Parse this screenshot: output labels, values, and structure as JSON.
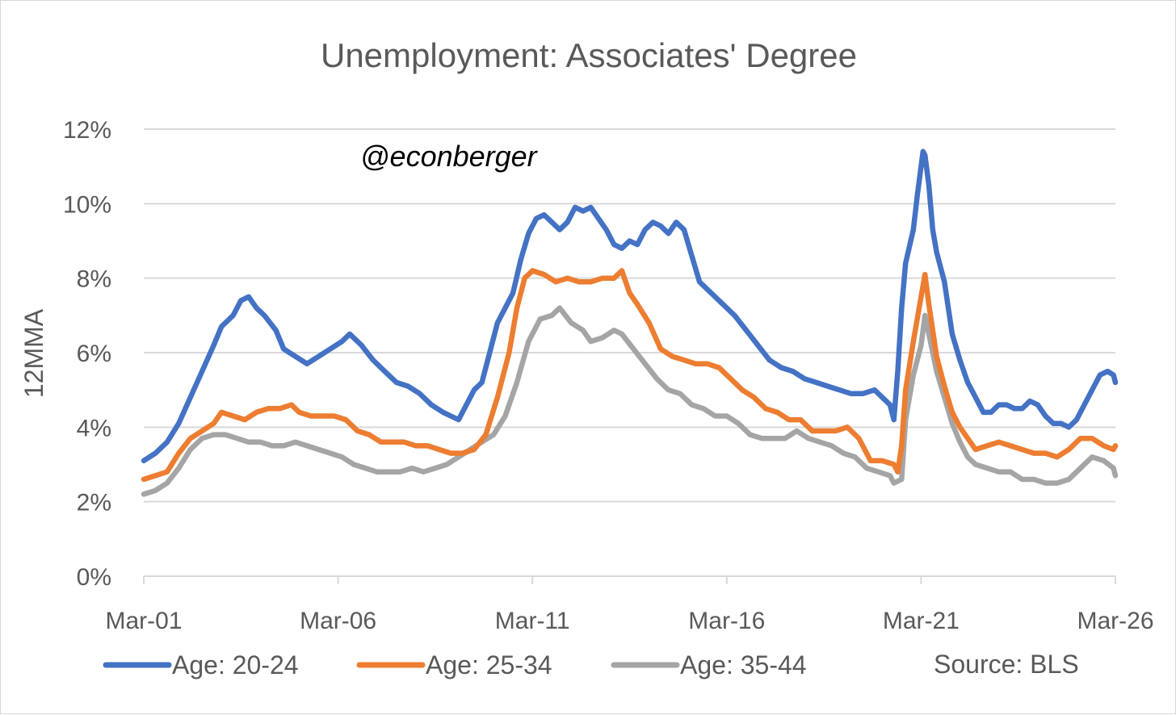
{
  "chart_data": {
    "type": "line",
    "title": "Unemployment: Associates' Degree",
    "ylabel": "12MMA",
    "xlabel": "",
    "watermark": "@econberger",
    "source": "Source: BLS",
    "ylim": [
      0,
      12
    ],
    "yticks": [
      "0%",
      "2%",
      "4%",
      "6%",
      "8%",
      "10%",
      "12%"
    ],
    "xlim": [
      2001.0,
      2026.0
    ],
    "xticks": [
      "Mar-01",
      "Mar-06",
      "Mar-11",
      "Mar-16",
      "Mar-21",
      "Mar-26"
    ],
    "grid": true,
    "legend_position": "bottom",
    "series": [
      {
        "name": "Age: 20-24",
        "color": "#4472C4",
        "points": [
          [
            2001.0,
            3.1
          ],
          [
            2001.3,
            3.3
          ],
          [
            2001.6,
            3.6
          ],
          [
            2001.9,
            4.1
          ],
          [
            2002.2,
            4.8
          ],
          [
            2002.5,
            5.5
          ],
          [
            2002.8,
            6.2
          ],
          [
            2003.0,
            6.7
          ],
          [
            2003.3,
            7.0
          ],
          [
            2003.5,
            7.4
          ],
          [
            2003.7,
            7.5
          ],
          [
            2003.9,
            7.2
          ],
          [
            2004.1,
            7.0
          ],
          [
            2004.4,
            6.6
          ],
          [
            2004.6,
            6.1
          ],
          [
            2004.9,
            5.9
          ],
          [
            2005.2,
            5.7
          ],
          [
            2005.5,
            5.9
          ],
          [
            2005.8,
            6.1
          ],
          [
            2006.1,
            6.3
          ],
          [
            2006.3,
            6.5
          ],
          [
            2006.6,
            6.2
          ],
          [
            2006.9,
            5.8
          ],
          [
            2007.2,
            5.5
          ],
          [
            2007.5,
            5.2
          ],
          [
            2007.8,
            5.1
          ],
          [
            2008.1,
            4.9
          ],
          [
            2008.4,
            4.6
          ],
          [
            2008.7,
            4.4
          ],
          [
            2008.9,
            4.3
          ],
          [
            2009.1,
            4.2
          ],
          [
            2009.3,
            4.6
          ],
          [
            2009.5,
            5.0
          ],
          [
            2009.7,
            5.2
          ],
          [
            2009.9,
            6.0
          ],
          [
            2010.1,
            6.8
          ],
          [
            2010.3,
            7.2
          ],
          [
            2010.5,
            7.6
          ],
          [
            2010.7,
            8.5
          ],
          [
            2010.9,
            9.2
          ],
          [
            2011.1,
            9.6
          ],
          [
            2011.3,
            9.7
          ],
          [
            2011.5,
            9.5
          ],
          [
            2011.7,
            9.3
          ],
          [
            2011.9,
            9.5
          ],
          [
            2012.1,
            9.9
          ],
          [
            2012.3,
            9.8
          ],
          [
            2012.5,
            9.9
          ],
          [
            2012.7,
            9.6
          ],
          [
            2012.9,
            9.3
          ],
          [
            2013.1,
            8.9
          ],
          [
            2013.3,
            8.8
          ],
          [
            2013.5,
            9.0
          ],
          [
            2013.7,
            8.9
          ],
          [
            2013.9,
            9.3
          ],
          [
            2014.1,
            9.5
          ],
          [
            2014.3,
            9.4
          ],
          [
            2014.5,
            9.2
          ],
          [
            2014.7,
            9.5
          ],
          [
            2014.9,
            9.3
          ],
          [
            2015.1,
            8.6
          ],
          [
            2015.3,
            7.9
          ],
          [
            2015.5,
            7.7
          ],
          [
            2015.7,
            7.5
          ],
          [
            2015.9,
            7.3
          ],
          [
            2016.2,
            7.0
          ],
          [
            2016.5,
            6.6
          ],
          [
            2016.8,
            6.2
          ],
          [
            2017.1,
            5.8
          ],
          [
            2017.4,
            5.6
          ],
          [
            2017.7,
            5.5
          ],
          [
            2018.0,
            5.3
          ],
          [
            2018.3,
            5.2
          ],
          [
            2018.6,
            5.1
          ],
          [
            2018.9,
            5.0
          ],
          [
            2019.2,
            4.9
          ],
          [
            2019.5,
            4.9
          ],
          [
            2019.8,
            5.0
          ],
          [
            2020.0,
            4.8
          ],
          [
            2020.2,
            4.6
          ],
          [
            2020.3,
            4.2
          ],
          [
            2020.4,
            5.5
          ],
          [
            2020.5,
            7.2
          ],
          [
            2020.6,
            8.4
          ],
          [
            2020.8,
            9.3
          ],
          [
            2020.9,
            10.2
          ],
          [
            2021.0,
            11.0
          ],
          [
            2021.05,
            11.4
          ],
          [
            2021.1,
            11.3
          ],
          [
            2021.2,
            10.5
          ],
          [
            2021.3,
            9.3
          ],
          [
            2021.4,
            8.7
          ],
          [
            2021.6,
            7.9
          ],
          [
            2021.8,
            6.5
          ],
          [
            2022.0,
            5.8
          ],
          [
            2022.2,
            5.2
          ],
          [
            2022.4,
            4.8
          ],
          [
            2022.6,
            4.4
          ],
          [
            2022.8,
            4.4
          ],
          [
            2023.0,
            4.6
          ],
          [
            2023.2,
            4.6
          ],
          [
            2023.4,
            4.5
          ],
          [
            2023.6,
            4.5
          ],
          [
            2023.8,
            4.7
          ],
          [
            2024.0,
            4.6
          ],
          [
            2024.2,
            4.3
          ],
          [
            2024.4,
            4.1
          ],
          [
            2024.6,
            4.1
          ],
          [
            2024.8,
            4.0
          ],
          [
            2025.0,
            4.2
          ],
          [
            2025.2,
            4.6
          ],
          [
            2025.4,
            5.0
          ],
          [
            2025.6,
            5.4
          ],
          [
            2025.8,
            5.5
          ],
          [
            2025.95,
            5.4
          ],
          [
            2026.0,
            5.2
          ]
        ]
      },
      {
        "name": "Age: 25-34",
        "color": "#ED7D31",
        "points": [
          [
            2001.0,
            2.6
          ],
          [
            2001.3,
            2.7
          ],
          [
            2001.6,
            2.8
          ],
          [
            2001.9,
            3.3
          ],
          [
            2002.2,
            3.7
          ],
          [
            2002.5,
            3.9
          ],
          [
            2002.8,
            4.1
          ],
          [
            2003.0,
            4.4
          ],
          [
            2003.3,
            4.3
          ],
          [
            2003.6,
            4.2
          ],
          [
            2003.9,
            4.4
          ],
          [
            2004.2,
            4.5
          ],
          [
            2004.5,
            4.5
          ],
          [
            2004.8,
            4.6
          ],
          [
            2005.0,
            4.4
          ],
          [
            2005.3,
            4.3
          ],
          [
            2005.6,
            4.3
          ],
          [
            2005.9,
            4.3
          ],
          [
            2006.2,
            4.2
          ],
          [
            2006.5,
            3.9
          ],
          [
            2006.8,
            3.8
          ],
          [
            2007.1,
            3.6
          ],
          [
            2007.4,
            3.6
          ],
          [
            2007.7,
            3.6
          ],
          [
            2008.0,
            3.5
          ],
          [
            2008.3,
            3.5
          ],
          [
            2008.6,
            3.4
          ],
          [
            2008.9,
            3.3
          ],
          [
            2009.2,
            3.3
          ],
          [
            2009.5,
            3.4
          ],
          [
            2009.8,
            3.8
          ],
          [
            2010.1,
            4.8
          ],
          [
            2010.4,
            6.0
          ],
          [
            2010.6,
            7.2
          ],
          [
            2010.8,
            8.0
          ],
          [
            2011.0,
            8.2
          ],
          [
            2011.3,
            8.1
          ],
          [
            2011.6,
            7.9
          ],
          [
            2011.9,
            8.0
          ],
          [
            2012.2,
            7.9
          ],
          [
            2012.5,
            7.9
          ],
          [
            2012.8,
            8.0
          ],
          [
            2013.1,
            8.0
          ],
          [
            2013.3,
            8.2
          ],
          [
            2013.5,
            7.6
          ],
          [
            2013.7,
            7.3
          ],
          [
            2014.0,
            6.8
          ],
          [
            2014.3,
            6.1
          ],
          [
            2014.6,
            5.9
          ],
          [
            2014.9,
            5.8
          ],
          [
            2015.2,
            5.7
          ],
          [
            2015.5,
            5.7
          ],
          [
            2015.8,
            5.6
          ],
          [
            2016.1,
            5.3
          ],
          [
            2016.4,
            5.0
          ],
          [
            2016.7,
            4.8
          ],
          [
            2017.0,
            4.5
          ],
          [
            2017.3,
            4.4
          ],
          [
            2017.6,
            4.2
          ],
          [
            2017.9,
            4.2
          ],
          [
            2018.2,
            3.9
          ],
          [
            2018.5,
            3.9
          ],
          [
            2018.8,
            3.9
          ],
          [
            2019.1,
            4.0
          ],
          [
            2019.4,
            3.7
          ],
          [
            2019.7,
            3.1
          ],
          [
            2020.0,
            3.1
          ],
          [
            2020.3,
            3.0
          ],
          [
            2020.4,
            2.8
          ],
          [
            2020.5,
            3.5
          ],
          [
            2020.6,
            5.0
          ],
          [
            2020.8,
            6.3
          ],
          [
            2021.0,
            7.5
          ],
          [
            2021.1,
            8.1
          ],
          [
            2021.2,
            7.3
          ],
          [
            2021.4,
            5.9
          ],
          [
            2021.6,
            5.1
          ],
          [
            2021.8,
            4.4
          ],
          [
            2022.0,
            4.0
          ],
          [
            2022.2,
            3.7
          ],
          [
            2022.4,
            3.4
          ],
          [
            2022.7,
            3.5
          ],
          [
            2023.0,
            3.6
          ],
          [
            2023.3,
            3.5
          ],
          [
            2023.6,
            3.4
          ],
          [
            2023.9,
            3.3
          ],
          [
            2024.2,
            3.3
          ],
          [
            2024.5,
            3.2
          ],
          [
            2024.8,
            3.4
          ],
          [
            2025.1,
            3.7
          ],
          [
            2025.4,
            3.7
          ],
          [
            2025.7,
            3.5
          ],
          [
            2025.95,
            3.4
          ],
          [
            2026.0,
            3.5
          ]
        ]
      },
      {
        "name": "Age: 35-44",
        "color": "#A5A5A5",
        "points": [
          [
            2001.0,
            2.2
          ],
          [
            2001.3,
            2.3
          ],
          [
            2001.6,
            2.5
          ],
          [
            2001.9,
            2.9
          ],
          [
            2002.2,
            3.4
          ],
          [
            2002.5,
            3.7
          ],
          [
            2002.8,
            3.8
          ],
          [
            2003.1,
            3.8
          ],
          [
            2003.4,
            3.7
          ],
          [
            2003.7,
            3.6
          ],
          [
            2004.0,
            3.6
          ],
          [
            2004.3,
            3.5
          ],
          [
            2004.6,
            3.5
          ],
          [
            2004.9,
            3.6
          ],
          [
            2005.2,
            3.5
          ],
          [
            2005.5,
            3.4
          ],
          [
            2005.8,
            3.3
          ],
          [
            2006.1,
            3.2
          ],
          [
            2006.4,
            3.0
          ],
          [
            2006.7,
            2.9
          ],
          [
            2007.0,
            2.8
          ],
          [
            2007.3,
            2.8
          ],
          [
            2007.6,
            2.8
          ],
          [
            2007.9,
            2.9
          ],
          [
            2008.2,
            2.8
          ],
          [
            2008.5,
            2.9
          ],
          [
            2008.8,
            3.0
          ],
          [
            2009.1,
            3.2
          ],
          [
            2009.4,
            3.4
          ],
          [
            2009.7,
            3.6
          ],
          [
            2010.0,
            3.8
          ],
          [
            2010.3,
            4.3
          ],
          [
            2010.6,
            5.2
          ],
          [
            2010.9,
            6.3
          ],
          [
            2011.2,
            6.9
          ],
          [
            2011.5,
            7.0
          ],
          [
            2011.7,
            7.2
          ],
          [
            2012.0,
            6.8
          ],
          [
            2012.3,
            6.6
          ],
          [
            2012.5,
            6.3
          ],
          [
            2012.8,
            6.4
          ],
          [
            2013.1,
            6.6
          ],
          [
            2013.3,
            6.5
          ],
          [
            2013.6,
            6.1
          ],
          [
            2013.9,
            5.7
          ],
          [
            2014.2,
            5.3
          ],
          [
            2014.5,
            5.0
          ],
          [
            2014.8,
            4.9
          ],
          [
            2015.1,
            4.6
          ],
          [
            2015.4,
            4.5
          ],
          [
            2015.7,
            4.3
          ],
          [
            2016.0,
            4.3
          ],
          [
            2016.3,
            4.1
          ],
          [
            2016.6,
            3.8
          ],
          [
            2016.9,
            3.7
          ],
          [
            2017.2,
            3.7
          ],
          [
            2017.5,
            3.7
          ],
          [
            2017.8,
            3.9
          ],
          [
            2018.1,
            3.7
          ],
          [
            2018.4,
            3.6
          ],
          [
            2018.7,
            3.5
          ],
          [
            2019.0,
            3.3
          ],
          [
            2019.3,
            3.2
          ],
          [
            2019.6,
            2.9
          ],
          [
            2019.9,
            2.8
          ],
          [
            2020.2,
            2.7
          ],
          [
            2020.3,
            2.5
          ],
          [
            2020.5,
            2.6
          ],
          [
            2020.6,
            4.2
          ],
          [
            2020.8,
            5.4
          ],
          [
            2021.0,
            6.2
          ],
          [
            2021.1,
            7.0
          ],
          [
            2021.2,
            6.5
          ],
          [
            2021.4,
            5.5
          ],
          [
            2021.6,
            4.8
          ],
          [
            2021.8,
            4.1
          ],
          [
            2022.0,
            3.6
          ],
          [
            2022.2,
            3.2
          ],
          [
            2022.4,
            3.0
          ],
          [
            2022.7,
            2.9
          ],
          [
            2023.0,
            2.8
          ],
          [
            2023.3,
            2.8
          ],
          [
            2023.6,
            2.6
          ],
          [
            2023.9,
            2.6
          ],
          [
            2024.2,
            2.5
          ],
          [
            2024.5,
            2.5
          ],
          [
            2024.8,
            2.6
          ],
          [
            2025.1,
            2.9
          ],
          [
            2025.4,
            3.2
          ],
          [
            2025.7,
            3.1
          ],
          [
            2025.95,
            2.9
          ],
          [
            2026.0,
            2.7
          ]
        ]
      }
    ]
  }
}
